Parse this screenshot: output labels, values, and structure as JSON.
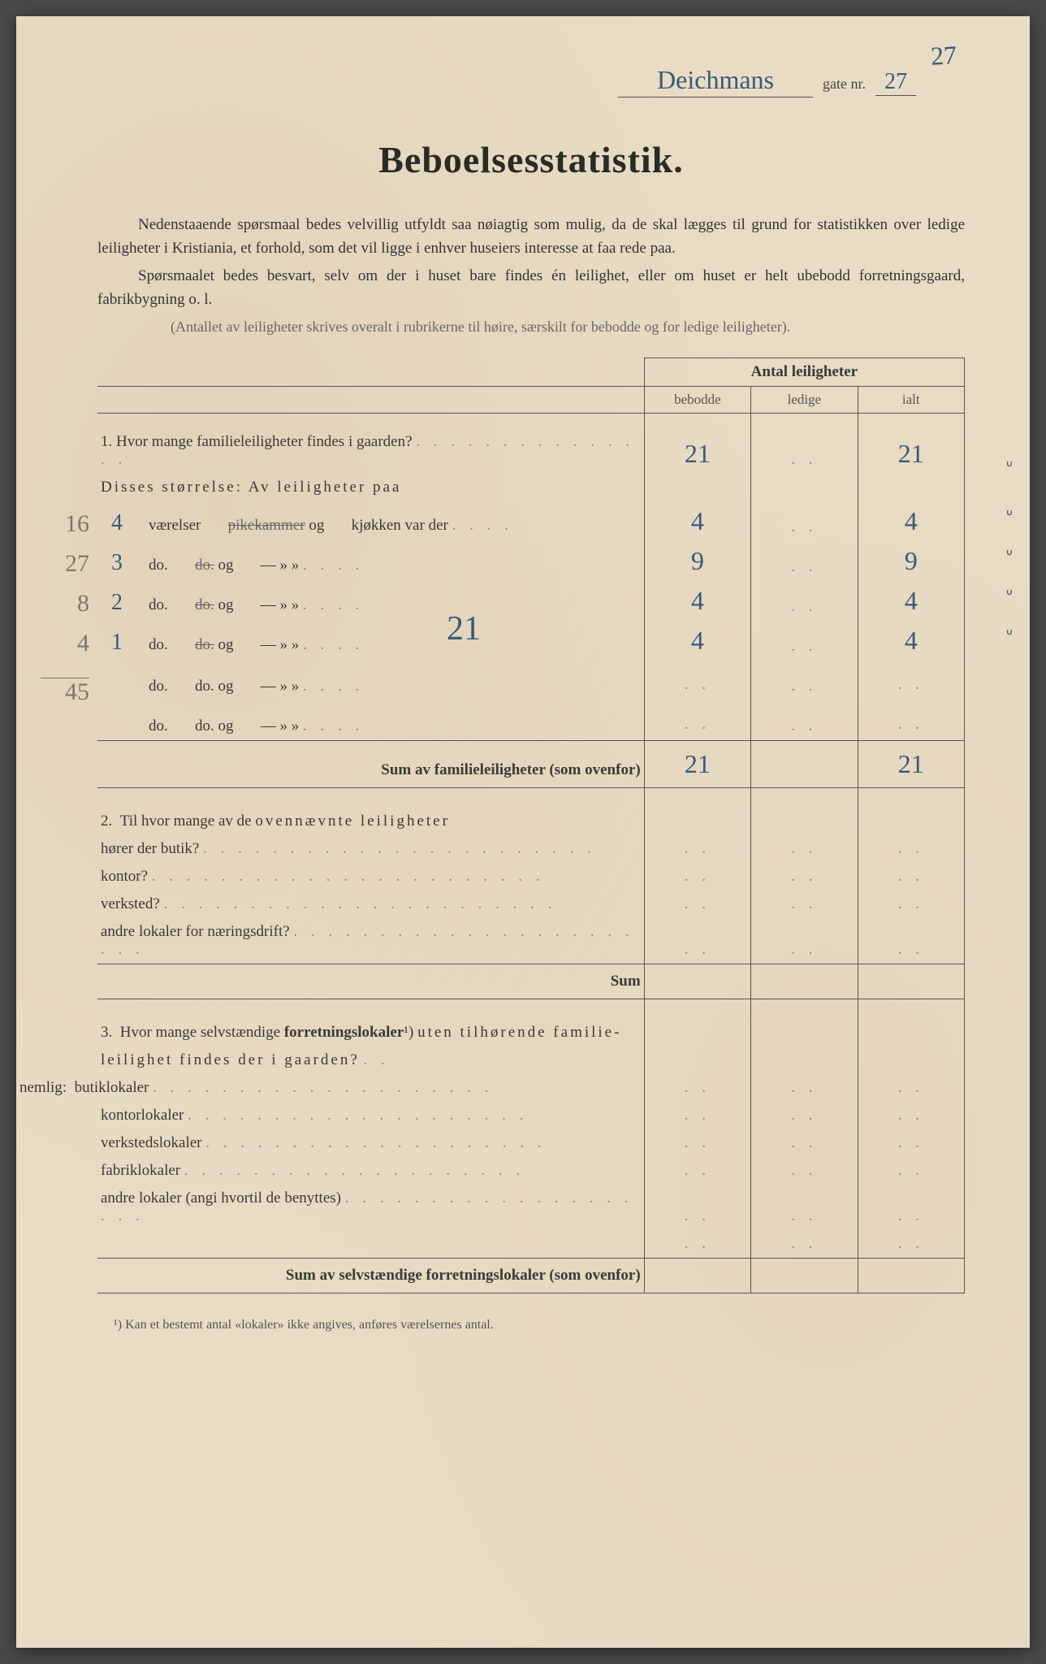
{
  "corner_number": "27",
  "street_name": "Deichmans",
  "gate_nr_label": "gate nr.",
  "gate_nr": "27",
  "title": "Beboelsesstatistik.",
  "intro_p1": "Nedenstaaende spørsmaal bedes velvillig utfyldt saa nøiagtig som mulig, da de skal lægges til grund for statistikken over ledige leiligheter i Kristiania, et forhold, som det vil ligge i enhver huseiers interesse at faa rede paa.",
  "intro_p2": "Spørsmaalet bedes besvart, selv om der i huset bare findes én leilighet, eller om huset er helt ubebodd forretningsgaard, fabrikbygning o. l.",
  "intro_note": "(Antallet av leiligheter skrives overalt i rubrikerne til høire, særskilt for bebodde og for ledige leiligheter).",
  "table_header": "Antal leiligheter",
  "col_bebodde": "bebodde",
  "col_ledige": "ledige",
  "col_ialt": "ialt",
  "q1": {
    "text": "1.  Hvor mange familieleiligheter findes i gaarden?",
    "bebodde": "21",
    "ialt": "21",
    "sub_label": "Disses størrelse:  Av leiligheter paa",
    "rows": [
      {
        "margin": "16",
        "rooms": "4",
        "lbl1": "værelser",
        "lbl2": "pikekammer",
        "strike2": true,
        "lbl3": "kjøkken var der",
        "bebodde": "4",
        "ialt": "4",
        "tick": "ᐡ"
      },
      {
        "margin": "27",
        "rooms": "3",
        "lbl1": "do.",
        "lbl2": "do.",
        "strike2": true,
        "lbl3": "—    »    »",
        "bebodde": "9",
        "ialt": "9",
        "tick": "ᐡ"
      },
      {
        "margin": "8",
        "rooms": "2",
        "lbl1": "do.",
        "lbl2": "do.",
        "strike2": true,
        "lbl3": "—    »    »",
        "bebodde": "4",
        "ialt": "4",
        "tick": "ᐡ"
      },
      {
        "margin": "4",
        "rooms": "1",
        "lbl1": "do.",
        "lbl2": "do.",
        "strike2": true,
        "lbl3": "—    »    »",
        "bebodde": "4",
        "ialt": "4",
        "tick": "ᐡ"
      },
      {
        "margin": "45",
        "rooms": "",
        "lbl1": "do.",
        "lbl2": "do.",
        "strike2": false,
        "lbl3": "—    »    »",
        "bebodde": "",
        "ialt": "",
        "tick": ""
      },
      {
        "margin": "",
        "rooms": "",
        "lbl1": "do.",
        "lbl2": "do.",
        "strike2": false,
        "lbl3": "—    »    »",
        "bebodde": "",
        "ialt": "",
        "tick": ""
      }
    ],
    "sum_label": "Sum av familieleiligheter (som ovenfor)",
    "sum_bebodde": "21",
    "sum_ialt": "21",
    "center_21": "21"
  },
  "q2": {
    "text": "2.  Til hvor mange av de ovennævnte leiligheter",
    "lines": [
      "hører der butik?",
      "kontor?",
      "verksted?",
      "andre lokaler for næringsdrift?"
    ],
    "sum": "Sum"
  },
  "q3": {
    "text_a": "3.  Hvor mange selvstændige forretningslokaler¹) uten tilhørende familie-",
    "text_b": "leilighet findes der i gaarden?",
    "nemlig": "nemlig: ",
    "lines": [
      "butiklokaler",
      "kontorlokaler",
      "verkstedslokaler",
      "fabriklokaler",
      "andre lokaler (angi hvortil de benyttes)"
    ],
    "sum_label": "Sum av selvstændige forretningslokaler (som ovenfor)"
  },
  "footnote": "¹)  Kan et bestemt antal «lokaler» ikke angives, anføres værelsernes antal.",
  "spaced_words": {
    "ovennaevnte": "ovennævnte leiligheter",
    "uten": "uten tilhørende familie-"
  }
}
